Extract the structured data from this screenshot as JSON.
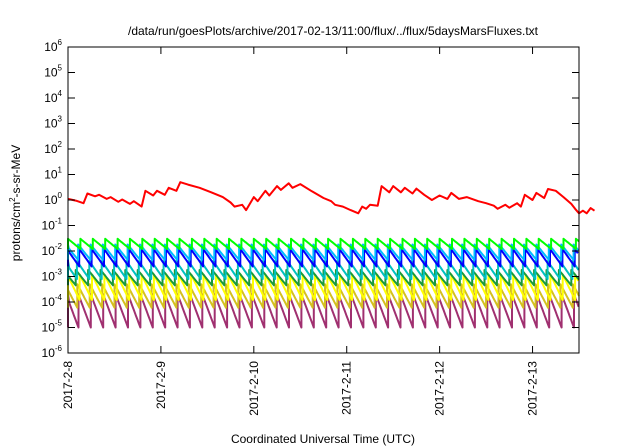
{
  "chart_data": {
    "type": "line",
    "title": "/data/run/goesPlots/archive/2017-02-13/11:00/flux/../flux/5daysMarsFluxes.txt",
    "xlabel": "Coordinated Universal Time (UTC)",
    "ylabel_main": "protons/cm",
    "ylabel_sup": "2",
    "ylabel_rest": "-s-sr-MeV",
    "x_range": [
      "2017-02-08T00:00",
      "2017-02-13T12:00"
    ],
    "x_ticks": [
      "2017-2-8",
      "2017-2-9",
      "2017-2-10",
      "2017-2-11",
      "2017-2-12",
      "2017-2-13"
    ],
    "y_scale": "log",
    "y_range": [
      1e-06,
      1000000.0
    ],
    "y_tick_exponents": [
      -6,
      -5,
      -4,
      -3,
      -2,
      -1,
      0,
      1,
      2,
      3,
      4,
      5,
      6
    ],
    "y_tick_base": "10",
    "grid": false,
    "legend": "none",
    "series": [
      {
        "color": "#ff0000",
        "points": [
          [
            "2017-02-08T00:00",
            1.1
          ],
          [
            "2017-02-08T02:00",
            0.95
          ],
          [
            "2017-02-08T04:00",
            0.75
          ],
          [
            "2017-02-08T05:00",
            1.8
          ],
          [
            "2017-02-08T07:00",
            1.4
          ],
          [
            "2017-02-08T08:00",
            1.6
          ],
          [
            "2017-02-08T10:00",
            1.1
          ],
          [
            "2017-02-08T11:00",
            1.3
          ],
          [
            "2017-02-08T13:00",
            0.85
          ],
          [
            "2017-02-08T14:00",
            1.05
          ],
          [
            "2017-02-08T16:00",
            0.7
          ],
          [
            "2017-02-08T17:00",
            0.9
          ],
          [
            "2017-02-08T19:00",
            0.55
          ],
          [
            "2017-02-08T20:00",
            2.3
          ],
          [
            "2017-02-08T22:00",
            1.5
          ],
          [
            "2017-02-08T23:00",
            2.3
          ],
          [
            "2017-02-09T01:00",
            1.6
          ],
          [
            "2017-02-09T02:00",
            3.0
          ],
          [
            "2017-02-09T04:00",
            2.3
          ],
          [
            "2017-02-09T05:00",
            5.0
          ],
          [
            "2017-02-09T07:00",
            4.0
          ],
          [
            "2017-02-09T10:00",
            3.0
          ],
          [
            "2017-02-09T13:00",
            2.0
          ],
          [
            "2017-02-09T16:00",
            1.3
          ],
          [
            "2017-02-09T18:00",
            0.8
          ],
          [
            "2017-02-09T19:00",
            0.55
          ],
          [
            "2017-02-09T21:00",
            0.65
          ],
          [
            "2017-02-09T22:00",
            0.4
          ],
          [
            "2017-02-10T00:00",
            1.3
          ],
          [
            "2017-02-10T01:00",
            0.9
          ],
          [
            "2017-02-10T03:00",
            2.3
          ],
          [
            "2017-02-10T04:00",
            1.5
          ],
          [
            "2017-02-10T06:00",
            3.5
          ],
          [
            "2017-02-10T07:00",
            2.5
          ],
          [
            "2017-02-10T09:00",
            4.5
          ],
          [
            "2017-02-10T10:00",
            3.0
          ],
          [
            "2017-02-10T12:00",
            4.2
          ],
          [
            "2017-02-10T15:00",
            2.2
          ],
          [
            "2017-02-10T18:00",
            1.2
          ],
          [
            "2017-02-10T20:00",
            0.9
          ],
          [
            "2017-02-10T21:00",
            0.65
          ],
          [
            "2017-02-10T23:00",
            0.55
          ],
          [
            "2017-02-11T01:00",
            0.4
          ],
          [
            "2017-02-11T03:00",
            0.3
          ],
          [
            "2017-02-11T04:00",
            0.55
          ],
          [
            "2017-02-11T05:00",
            0.45
          ],
          [
            "2017-02-11T06:00",
            0.65
          ],
          [
            "2017-02-11T08:00",
            0.6
          ],
          [
            "2017-02-11T09:00",
            3.5
          ],
          [
            "2017-02-11T11:00",
            2.0
          ],
          [
            "2017-02-11T12:00",
            3.5
          ],
          [
            "2017-02-11T14:00",
            2.0
          ],
          [
            "2017-02-11T15:00",
            3.0
          ],
          [
            "2017-02-11T17:00",
            1.8
          ],
          [
            "2017-02-11T18:00",
            2.8
          ],
          [
            "2017-02-11T20:00",
            1.6
          ],
          [
            "2017-02-11T22:00",
            1.0
          ],
          [
            "2017-02-12T00:00",
            1.5
          ],
          [
            "2017-02-12T02:00",
            1.1
          ],
          [
            "2017-02-12T03:00",
            1.9
          ],
          [
            "2017-02-12T05:00",
            1.1
          ],
          [
            "2017-02-12T07:00",
            1.3
          ],
          [
            "2017-02-12T10:00",
            0.9
          ],
          [
            "2017-02-12T12:00",
            0.75
          ],
          [
            "2017-02-12T14:00",
            0.6
          ],
          [
            "2017-02-12T15:00",
            0.45
          ],
          [
            "2017-02-12T17:00",
            0.65
          ],
          [
            "2017-02-12T18:00",
            0.5
          ],
          [
            "2017-02-12T20:00",
            0.75
          ],
          [
            "2017-02-12T21:00",
            0.55
          ],
          [
            "2017-02-12T22:00",
            1.6
          ],
          [
            "2017-02-13T00:00",
            1.0
          ],
          [
            "2017-02-13T01:00",
            1.9
          ],
          [
            "2017-02-13T03:00",
            1.2
          ],
          [
            "2017-02-13T04:00",
            2.7
          ],
          [
            "2017-02-13T06:00",
            2.3
          ],
          [
            "2017-02-13T08:00",
            1.3
          ],
          [
            "2017-02-13T10:00",
            0.7
          ],
          [
            "2017-02-13T11:00",
            0.45
          ],
          [
            "2017-02-13T12:00",
            0.3
          ],
          [
            "2017-02-13T13:00",
            0.38
          ],
          [
            "2017-02-13T14:00",
            0.3
          ],
          [
            "2017-02-13T15:00",
            0.48
          ],
          [
            "2017-02-13T16:00",
            0.38
          ]
        ]
      },
      {
        "color": "#00ff00",
        "sawtooth": {
          "peak": 0.03,
          "trough": 0.012,
          "phase_hours": 0
        }
      },
      {
        "color": "#00bbff",
        "sawtooth": {
          "peak": 0.018,
          "trough": 0.0045,
          "phase_hours": 0.6
        }
      },
      {
        "color": "#0000ff",
        "sawtooth": {
          "peak": 0.012,
          "trough": 0.0025,
          "phase_hours": 0.3
        }
      },
      {
        "color": "#00c0c0",
        "sawtooth": {
          "peak": 0.004,
          "trough": 0.0008,
          "phase_hours": 0.9
        }
      },
      {
        "color": "#1a9a3a",
        "sawtooth": {
          "peak": 0.0018,
          "trough": 0.00045,
          "phase_hours": 1.2
        }
      },
      {
        "color": "#ffff00",
        "sawtooth": {
          "peak": 0.0012,
          "trough": 0.00012,
          "phase_hours": 0.2
        }
      },
      {
        "color": "#d4c020",
        "sawtooth": {
          "peak": 0.0005,
          "trough": 6e-05,
          "phase_hours": 0.8
        }
      },
      {
        "color": "#a03070",
        "sawtooth": {
          "peak": 0.0002,
          "trough": 1e-05,
          "phase_hours": 0.5
        }
      }
    ],
    "sawtooth_period_hours": 3.2
  }
}
